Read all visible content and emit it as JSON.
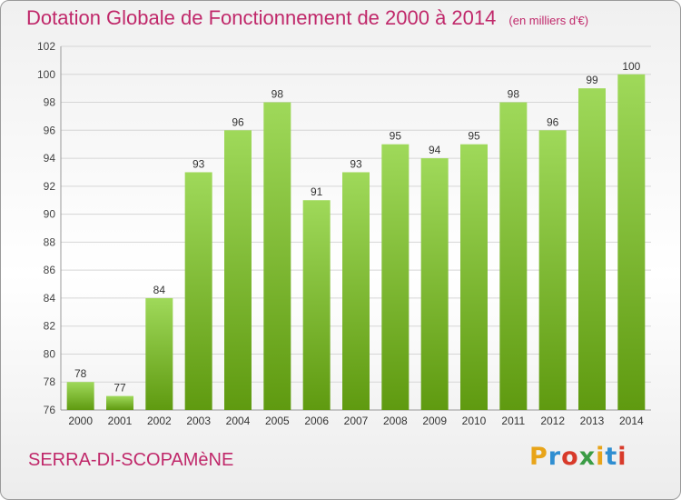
{
  "header": {
    "title": "Dotation Globale de Fonctionnement de 2000 à 2014",
    "unit": "(en milliers d'€)"
  },
  "footer": {
    "commune": "SERRA-DI-SCOPAMèNE",
    "brand": "Proxiti",
    "brand_colors": [
      "#e8a419",
      "#2f8ed1",
      "#d83a2a",
      "#3a9c45",
      "#e8a419",
      "#2f8ed1",
      "#d83a2a"
    ]
  },
  "colors": {
    "bar_top": "#9fd95a",
    "bar_bottom": "#5f9a10",
    "accent": "#c0286a",
    "grid": "#d6d6d6"
  },
  "chart_data": {
    "type": "bar",
    "categories": [
      "2000",
      "2001",
      "2002",
      "2003",
      "2004",
      "2005",
      "2006",
      "2007",
      "2008",
      "2009",
      "2010",
      "2011",
      "2012",
      "2013",
      "2014"
    ],
    "values": [
      78,
      77,
      84,
      93,
      96,
      98,
      91,
      93,
      95,
      94,
      95,
      98,
      96,
      99,
      100
    ],
    "title": "Dotation Globale de Fonctionnement de 2000 à 2014",
    "ylabel": "",
    "xlabel": "",
    "ylim": [
      76,
      102
    ],
    "yticks": [
      76,
      78,
      80,
      82,
      84,
      86,
      88,
      90,
      92,
      94,
      96,
      98,
      100,
      102
    ],
    "grid": true,
    "legend": "none"
  }
}
